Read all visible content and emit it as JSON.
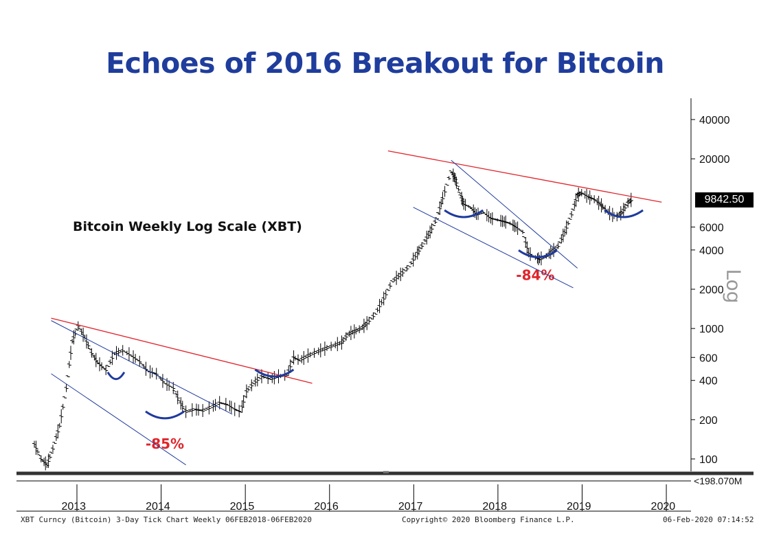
{
  "chart_data": {
    "type": "line",
    "title": "Echoes of 2016 Breakout for Bitcoin",
    "subtitle": "Bitcoin Weekly Log Scale (XBT)",
    "y_scale": "log",
    "y_axis_label": "Log",
    "ylim": [
      80,
      50000
    ],
    "xlim": [
      2013.0,
      2020.75
    ],
    "y_ticks": [
      100,
      200,
      400,
      600,
      1000,
      2000,
      4000,
      6000,
      20000,
      40000
    ],
    "y_tick_labels": [
      "100",
      "200",
      "400",
      "600",
      "1000",
      "2000",
      "4000",
      "6000",
      "20000",
      "40000"
    ],
    "x_tick_labels": [
      "2013",
      "2014",
      "2015",
      "2016",
      "2017",
      "2018",
      "2019",
      "2020"
    ],
    "last_price_label": "9842.50",
    "lower_overflow_label": "198.070M",
    "series": [
      {
        "type": "ohlc-weekly",
        "points": [
          [
            2013.0,
            130
          ],
          [
            2013.08,
            100
          ],
          [
            2013.15,
            90
          ],
          [
            2013.22,
            120
          ],
          [
            2013.3,
            180
          ],
          [
            2013.38,
            350
          ],
          [
            2013.45,
            800
          ],
          [
            2013.52,
            1050
          ],
          [
            2013.6,
            850
          ],
          [
            2013.68,
            650
          ],
          [
            2013.75,
            550
          ],
          [
            2013.85,
            480
          ],
          [
            2013.95,
            640
          ],
          [
            2014.05,
            680
          ],
          [
            2014.15,
            620
          ],
          [
            2014.25,
            560
          ],
          [
            2014.35,
            470
          ],
          [
            2014.45,
            450
          ],
          [
            2014.55,
            380
          ],
          [
            2014.65,
            350
          ],
          [
            2014.72,
            280
          ],
          [
            2014.8,
            230
          ],
          [
            2014.9,
            240
          ],
          [
            2015.0,
            235
          ],
          [
            2015.1,
            250
          ],
          [
            2015.2,
            270
          ],
          [
            2015.3,
            260
          ],
          [
            2015.38,
            240
          ],
          [
            2015.45,
            230
          ],
          [
            2015.52,
            330
          ],
          [
            2015.6,
            380
          ],
          [
            2015.7,
            430
          ],
          [
            2015.8,
            410
          ],
          [
            2015.9,
            430
          ],
          [
            2016.0,
            440
          ],
          [
            2016.08,
            600
          ],
          [
            2016.15,
            570
          ],
          [
            2016.25,
            620
          ],
          [
            2016.35,
            660
          ],
          [
            2016.45,
            700
          ],
          [
            2016.55,
            740
          ],
          [
            2016.65,
            780
          ],
          [
            2016.72,
            900
          ],
          [
            2016.8,
            950
          ],
          [
            2016.88,
            1000
          ],
          [
            2016.95,
            1100
          ],
          [
            2017.05,
            1300
          ],
          [
            2017.15,
            1700
          ],
          [
            2017.25,
            2300
          ],
          [
            2017.35,
            2600
          ],
          [
            2017.45,
            3000
          ],
          [
            2017.55,
            3800
          ],
          [
            2017.62,
            4500
          ],
          [
            2017.7,
            5500
          ],
          [
            2017.78,
            7000
          ],
          [
            2017.85,
            10000
          ],
          [
            2017.95,
            16000
          ],
          [
            2018.0,
            14000
          ],
          [
            2018.05,
            11000
          ],
          [
            2018.1,
            9000
          ],
          [
            2018.18,
            8500
          ],
          [
            2018.25,
            7500
          ],
          [
            2018.33,
            7800
          ],
          [
            2018.42,
            7000
          ],
          [
            2018.5,
            6800
          ],
          [
            2018.58,
            6600
          ],
          [
            2018.65,
            6400
          ],
          [
            2018.72,
            6000
          ],
          [
            2018.8,
            5500
          ],
          [
            2018.87,
            3800
          ],
          [
            2018.95,
            3500
          ],
          [
            2019.0,
            3400
          ],
          [
            2019.08,
            3600
          ],
          [
            2019.15,
            3900
          ],
          [
            2019.22,
            4300
          ],
          [
            2019.3,
            5500
          ],
          [
            2019.38,
            7500
          ],
          [
            2019.45,
            10500
          ],
          [
            2019.5,
            11000
          ],
          [
            2019.58,
            10200
          ],
          [
            2019.65,
            9800
          ],
          [
            2019.72,
            9000
          ],
          [
            2019.78,
            8200
          ],
          [
            2019.85,
            7500
          ],
          [
            2019.92,
            7200
          ],
          [
            2019.98,
            7800
          ],
          [
            2020.05,
            9200
          ],
          [
            2020.1,
            9842.5
          ]
        ]
      }
    ],
    "annotations": [
      {
        "kind": "text",
        "text": "-85%",
        "x": 2014.55,
        "y": 120,
        "color": "#e0242b"
      },
      {
        "kind": "text",
        "text": "-84%",
        "x": 2018.95,
        "y": 2350,
        "color": "#e0242b"
      },
      {
        "kind": "trendline",
        "color": "#e0242b",
        "from": [
          2013.2,
          1200
        ],
        "to": [
          2016.3,
          380
        ]
      },
      {
        "kind": "trendline",
        "color": "#e0242b",
        "from": [
          2017.2,
          23000
        ],
        "to": [
          2020.45,
          9300
        ]
      },
      {
        "kind": "channel",
        "color": "#1f3a9e",
        "from": [
          2013.2,
          1150
        ],
        "to": [
          2015.35,
          220
        ]
      },
      {
        "kind": "channel",
        "color": "#1f3a9e",
        "from": [
          2013.2,
          450
        ],
        "to": [
          2014.8,
          90
        ]
      },
      {
        "kind": "channel",
        "color": "#1f3a9e",
        "from": [
          2017.95,
          19500
        ],
        "to": [
          2019.45,
          2900
        ]
      },
      {
        "kind": "channel",
        "color": "#1f3a9e",
        "from": [
          2017.5,
          8500
        ],
        "to": [
          2019.4,
          2050
        ]
      },
      {
        "kind": "arc",
        "color": "#1f3a9e",
        "x": 2013.97,
        "y": 430
      },
      {
        "kind": "arc",
        "color": "#1f3a9e",
        "x": 2014.55,
        "y": 215
      },
      {
        "kind": "arc",
        "color": "#1f3a9e",
        "x": 2015.85,
        "y": 450
      },
      {
        "kind": "arc",
        "color": "#1f3a9e",
        "x": 2018.1,
        "y": 7500
      },
      {
        "kind": "arc",
        "color": "#1f3a9e",
        "x": 2018.98,
        "y": 3700
      },
      {
        "kind": "arc",
        "color": "#1f3a9e",
        "x": 2020.0,
        "y": 7500
      }
    ]
  },
  "footer": {
    "left": "XBT Curncy (Bitcoin) 3-Day Tick Chart  Weekly 06FEB2018-06FEB2020",
    "center": "Copyright© 2020 Bloomberg Finance L.P.",
    "right": "06-Feb-2020 07:14:52"
  },
  "colors": {
    "title": "#1f3d9c",
    "trendline": "#e0242b",
    "channel": "#1f3a9e",
    "bars": "#000000"
  }
}
